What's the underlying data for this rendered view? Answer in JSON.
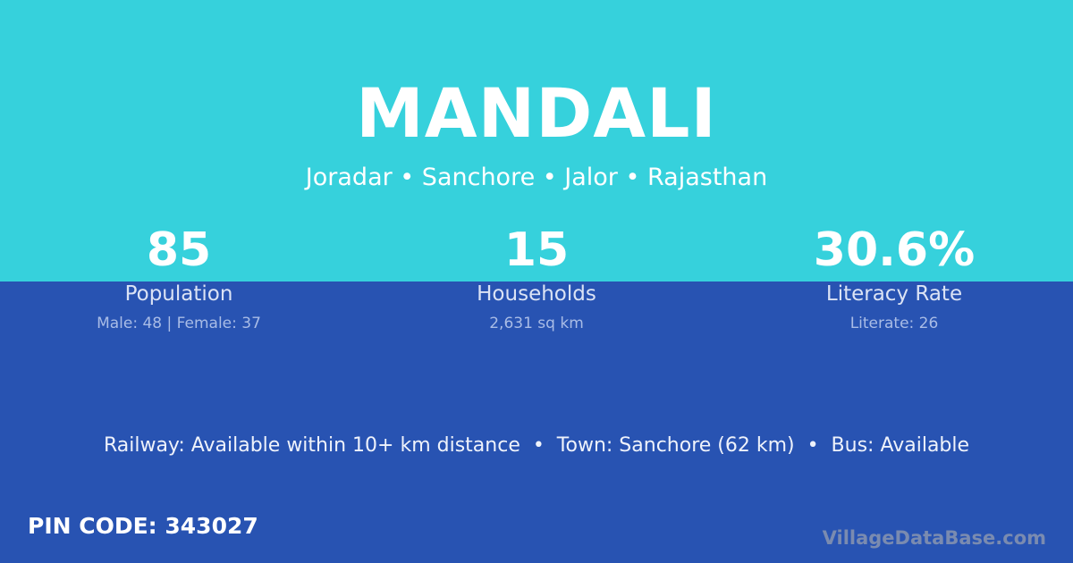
{
  "village": "MANDALI",
  "location": "Joradar • Sanchore • Jalor • Rajasthan",
  "stats": [
    {
      "value": "85",
      "label": "Population",
      "detail": "Male: 48 | Female: 37"
    },
    {
      "value": "15",
      "label": "Households",
      "detail": "2,631 sq km"
    },
    {
      "value": "30.6%",
      "label": "Literacy Rate",
      "detail": "Literate: 26"
    }
  ],
  "transport": "Railway: Available within 10+ km distance  •  Town: Sanchore (62 km)  •  Bus: Available",
  "pin_code": "PIN CODE: 343027",
  "brand": "VillageDataBase.com",
  "colors": {
    "top": "#36d1dc",
    "bottom": "#2853b2"
  }
}
